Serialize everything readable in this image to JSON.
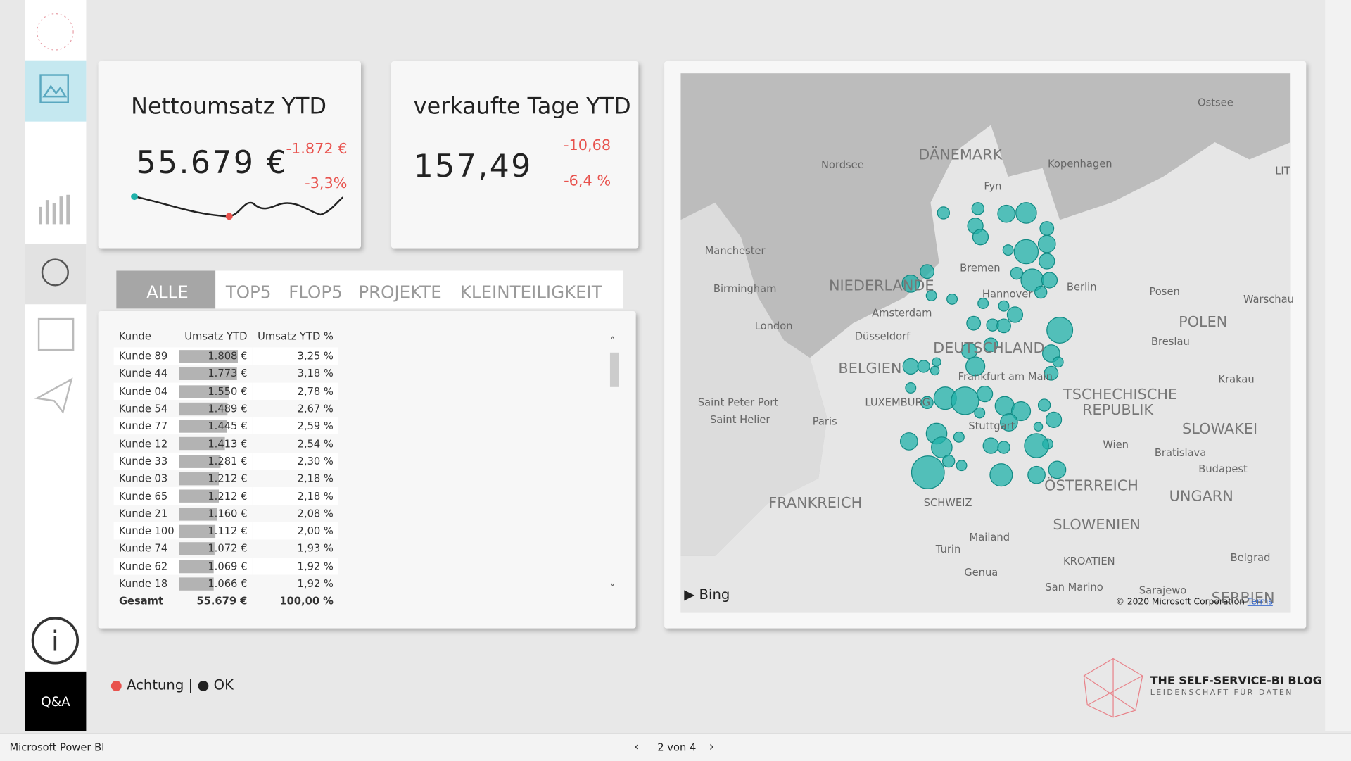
{
  "kpi1": {
    "title": "Nettoumsatz YTD",
    "value": "55.679 €",
    "delta_abs": "-1.872 €",
    "delta_pct": "-3,3%"
  },
  "kpi2": {
    "title": "verkaufte Tage YTD",
    "value": "157,49",
    "delta_abs": "-10,68",
    "delta_pct": "-6,4 %"
  },
  "tabs": [
    "ALLE",
    "TOP5",
    "FLOP5",
    "PROJEKTE",
    "KLEINTEILIGKEIT"
  ],
  "table": {
    "columns": [
      "Kunde",
      "Umsatz YTD",
      "Umsatz YTD %"
    ],
    "rows": [
      [
        "Kunde 89",
        "1.808 €",
        "3,25 %"
      ],
      [
        "Kunde 44",
        "1.773 €",
        "3,18 %"
      ],
      [
        "Kunde 04",
        "1.550 €",
        "2,78 %"
      ],
      [
        "Kunde 54",
        "1.489 €",
        "2,67 %"
      ],
      [
        "Kunde 77",
        "1.445 €",
        "2,59 %"
      ],
      [
        "Kunde 12",
        "1.413 €",
        "2,54 %"
      ],
      [
        "Kunde 33",
        "1.281 €",
        "2,30 %"
      ],
      [
        "Kunde 03",
        "1.212 €",
        "2,18 %"
      ],
      [
        "Kunde 65",
        "1.212 €",
        "2,18 %"
      ],
      [
        "Kunde 21",
        "1.160 €",
        "2,08 %"
      ],
      [
        "Kunde 100",
        "1.112 €",
        "2,00 %"
      ],
      [
        "Kunde 74",
        "1.072 €",
        "1,93 %"
      ],
      [
        "Kunde 62",
        "1.069 €",
        "1,92 %"
      ],
      [
        "Kunde 18",
        "1.066 €",
        "1,92 %"
      ]
    ],
    "total": [
      "Gesamt",
      "55.679 €",
      "100,00 %"
    ]
  },
  "legend": {
    "warn": "Achtung |",
    "ok": "OK"
  },
  "nav": {
    "qa": "Q&A"
  },
  "map": {
    "bing": "Bing",
    "copyright": "© 2020 Microsoft Corporation",
    "terms": "Terms",
    "labels": [
      [
        "Ostsee",
        1390,
        112,
        0
      ],
      [
        "DÄNEMARK",
        1066,
        170,
        1
      ],
      [
        "Nordsee",
        953,
        184,
        0
      ],
      [
        "Kopenhagen",
        1216,
        183,
        0
      ],
      [
        "LIT",
        1480,
        191,
        0
      ],
      [
        "Fyn",
        1142,
        209,
        0
      ],
      [
        "Manchester",
        818,
        284,
        0
      ],
      [
        "Birmingham",
        828,
        328,
        0
      ],
      [
        "NIEDERLANDE",
        962,
        322,
        1
      ],
      [
        "Bremen",
        1114,
        304,
        0
      ],
      [
        "Hannover",
        1140,
        334,
        0
      ],
      [
        "Berlin",
        1238,
        326,
        0
      ],
      [
        "Posen",
        1334,
        331,
        0
      ],
      [
        "Warschau",
        1443,
        340,
        0
      ],
      [
        "Amsterdam",
        1012,
        356,
        0
      ],
      [
        "London",
        876,
        371,
        0
      ],
      [
        "POLEN",
        1368,
        364,
        1
      ],
      [
        "Düsseldorf",
        992,
        383,
        0
      ],
      [
        "Breslau",
        1336,
        389,
        0
      ],
      [
        "DEUTSCHLAND",
        1083,
        394,
        1
      ],
      [
        "BELGIEN",
        973,
        418,
        1
      ],
      [
        "Frankfurt am Main",
        1112,
        430,
        0
      ],
      [
        "Krakau",
        1414,
        433,
        0
      ],
      [
        "TSCHECHISCHE",
        1234,
        448,
        1
      ],
      [
        "LUXEMBURG",
        1004,
        460,
        0
      ],
      [
        "Saint Peter Port",
        810,
        460,
        0
      ],
      [
        "REPUBLIK",
        1256,
        466,
        1
      ],
      [
        "Saint Helier",
        824,
        480,
        0
      ],
      [
        "Paris",
        943,
        482,
        0
      ],
      [
        "Stuttgart",
        1124,
        487,
        0
      ],
      [
        "SLOWAKEI",
        1372,
        488,
        1
      ],
      [
        "Wien",
        1280,
        509,
        0
      ],
      [
        "Bratislava",
        1340,
        518,
        0
      ],
      [
        "Budapest",
        1391,
        537,
        0
      ],
      [
        "ÖSTERREICH",
        1212,
        554,
        1
      ],
      [
        "UNGARN",
        1357,
        566,
        1
      ],
      [
        "FRANKREICH",
        892,
        574,
        1
      ],
      [
        "SCHWEIZ",
        1072,
        576,
        0
      ],
      [
        "SLOWENIEN",
        1222,
        599,
        1
      ],
      [
        "Mailand",
        1125,
        616,
        0
      ],
      [
        "Turin",
        1086,
        630,
        0
      ],
      [
        "KROATIEN",
        1234,
        644,
        0
      ],
      [
        "Belgrad",
        1428,
        640,
        0
      ],
      [
        "Genua",
        1119,
        657,
        0
      ],
      [
        "San Marino",
        1213,
        674,
        0
      ],
      [
        "Sarajewo",
        1322,
        678,
        0
      ],
      [
        "SERBIEN",
        1406,
        684,
        1
      ]
    ]
  },
  "footer": {
    "app": "Microsoft Power BI",
    "page": "2 von 4"
  },
  "logo": {
    "title": "THE SELF-SERVICE-BI BLOG",
    "subtitle": "LEIDENSCHAFT FÜR DATEN"
  }
}
